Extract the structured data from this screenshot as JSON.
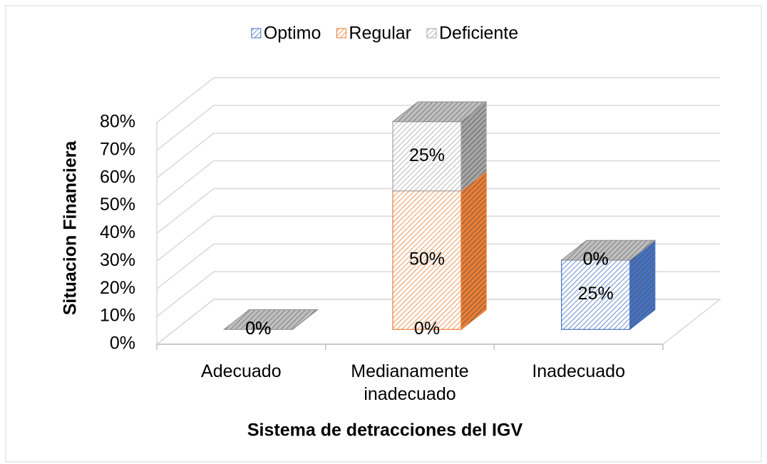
{
  "chart_data": {
    "type": "bar3d_stacked",
    "xlabel": "Sistema de detracciones del IGV",
    "ylabel": "Situacion Financiera",
    "categories": [
      "Adecuado",
      "Medianamente inadecuado",
      "Inadecuado"
    ],
    "series": [
      {
        "name": "Optimo",
        "color": "#4472c4",
        "values": [
          0,
          0,
          25
        ],
        "value_labels": [
          "0%",
          "0%",
          "25%"
        ]
      },
      {
        "name": "Regular",
        "color": "#ed7d31",
        "values": [
          0,
          50,
          0
        ],
        "value_labels": [
          "0%",
          "50%",
          "0%"
        ]
      },
      {
        "name": "Deficiente",
        "color": "#a5a5a5",
        "values": [
          0,
          25,
          0
        ],
        "value_labels": [
          "0%",
          "25%",
          "0%"
        ]
      }
    ],
    "ylim": [
      0,
      80
    ],
    "yticks": [
      {
        "value": 0,
        "label": "0%"
      },
      {
        "value": 10,
        "label": "10%"
      },
      {
        "value": 20,
        "label": "20%"
      },
      {
        "value": 30,
        "label": "30%"
      },
      {
        "value": 40,
        "label": "40%"
      },
      {
        "value": 50,
        "label": "50%"
      },
      {
        "value": 60,
        "label": "60%"
      },
      {
        "value": 70,
        "label": "70%"
      },
      {
        "value": 80,
        "label": "80%"
      }
    ],
    "grid": true,
    "legend": "top"
  }
}
